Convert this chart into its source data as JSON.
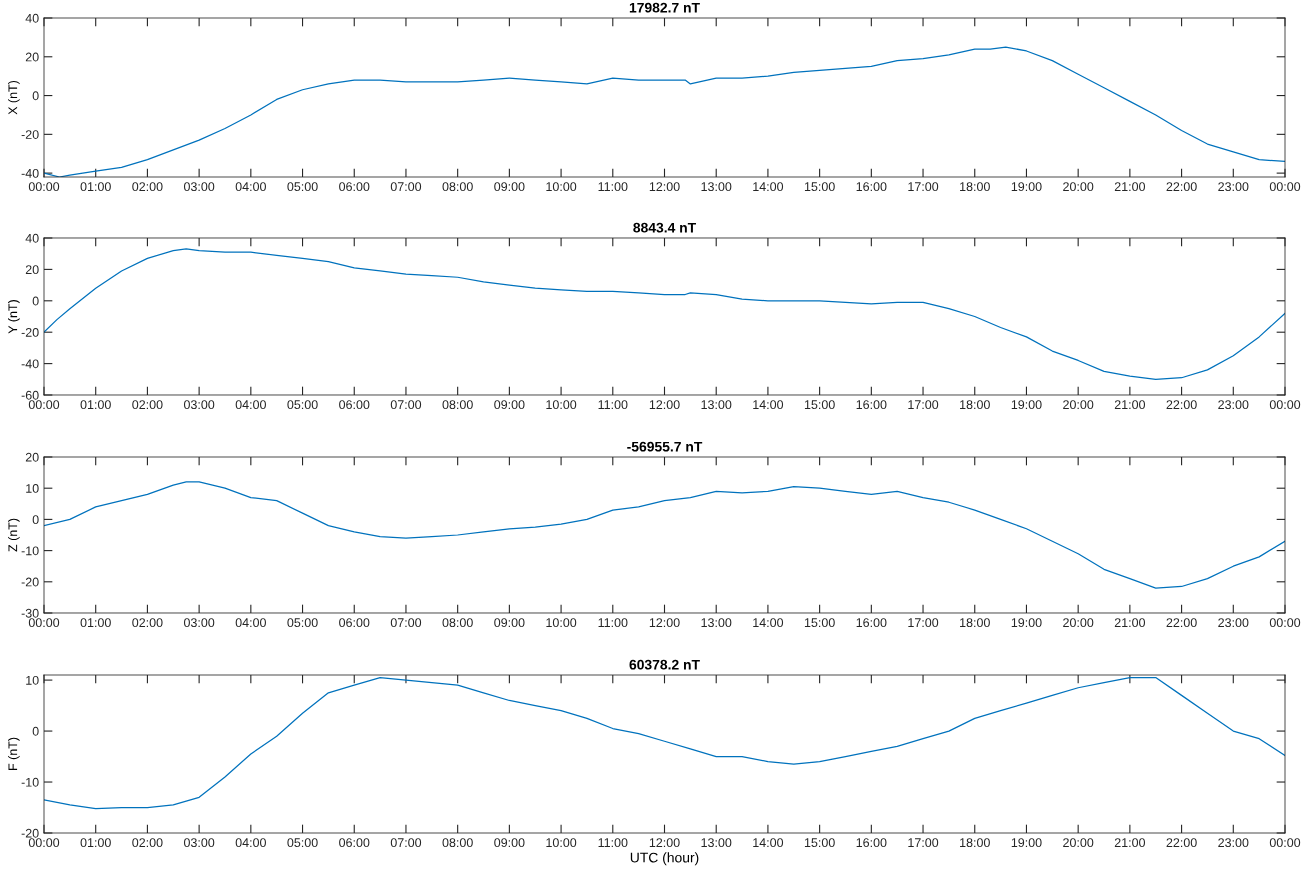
{
  "chart_data": [
    {
      "type": "line",
      "title": "17982.7 nT",
      "ylabel": "X (nT)",
      "xlim": [
        0,
        24
      ],
      "ylim": [
        -42,
        40
      ],
      "yticks": [
        -40,
        -20,
        0,
        20,
        40
      ],
      "grid": false,
      "legend": false,
      "marker": "none",
      "line_style": "solid",
      "xticks": [
        {
          "value": 0,
          "label": "00:00"
        },
        {
          "value": 1,
          "label": "01:00"
        },
        {
          "value": 2,
          "label": "02:00"
        },
        {
          "value": 3,
          "label": "03:00"
        },
        {
          "value": 4,
          "label": "04:00"
        },
        {
          "value": 5,
          "label": "05:00"
        },
        {
          "value": 6,
          "label": "06:00"
        },
        {
          "value": 7,
          "label": "07:00"
        },
        {
          "value": 8,
          "label": "08:00"
        },
        {
          "value": 9,
          "label": "09:00"
        },
        {
          "value": 10,
          "label": "10:00"
        },
        {
          "value": 11,
          "label": "11:00"
        },
        {
          "value": 12,
          "label": "12:00"
        },
        {
          "value": 13,
          "label": "13:00"
        },
        {
          "value": 14,
          "label": "14:00"
        },
        {
          "value": 15,
          "label": "15:00"
        },
        {
          "value": 16,
          "label": "16:00"
        },
        {
          "value": 17,
          "label": "17:00"
        },
        {
          "value": 18,
          "label": "18:00"
        },
        {
          "value": 19,
          "label": "19:00"
        },
        {
          "value": 20,
          "label": "20:00"
        },
        {
          "value": 21,
          "label": "21:00"
        },
        {
          "value": 22,
          "label": "22:00"
        },
        {
          "value": 23,
          "label": "23:00"
        },
        {
          "value": 24,
          "label": "00:00"
        }
      ],
      "series": [
        {
          "color": "#0072bd",
          "x": [
            0,
            0.3,
            0.5,
            1,
            1.5,
            2,
            2.5,
            3,
            3.5,
            4,
            4.5,
            5,
            5.5,
            6,
            6.5,
            7,
            7.5,
            8,
            8.5,
            9,
            9.5,
            10,
            10.5,
            11,
            11.5,
            12,
            12.4,
            12.5,
            13,
            13.5,
            14,
            14.5,
            15,
            15.5,
            16,
            16.5,
            17,
            17.5,
            18,
            18.3,
            18.6,
            19,
            19.5,
            20,
            20.5,
            21,
            21.5,
            22,
            22.5,
            23,
            23.5,
            24
          ],
          "values": [
            -40,
            -42,
            -41,
            -39,
            -37,
            -33,
            -28,
            -23,
            -17,
            -10,
            -2,
            3,
            6,
            8,
            8,
            7,
            7,
            7,
            8,
            9,
            8,
            7,
            6,
            9,
            8,
            8,
            8,
            6,
            9,
            9,
            10,
            12,
            13,
            14,
            15,
            18,
            19,
            21,
            24,
            24,
            25,
            23,
            18,
            11,
            4,
            -3,
            -10,
            -18,
            -25,
            -29,
            -33,
            -34
          ]
        }
      ]
    },
    {
      "type": "line",
      "title": "8843.4 nT",
      "ylabel": "Y (nT)",
      "xlim": [
        0,
        24
      ],
      "ylim": [
        -60,
        40
      ],
      "yticks": [
        -60,
        -40,
        -20,
        0,
        20,
        40
      ],
      "grid": false,
      "legend": false,
      "marker": "none",
      "line_style": "solid",
      "xticks": [
        {
          "value": 0,
          "label": "00:00"
        },
        {
          "value": 1,
          "label": "01:00"
        },
        {
          "value": 2,
          "label": "02:00"
        },
        {
          "value": 3,
          "label": "03:00"
        },
        {
          "value": 4,
          "label": "04:00"
        },
        {
          "value": 5,
          "label": "05:00"
        },
        {
          "value": 6,
          "label": "06:00"
        },
        {
          "value": 7,
          "label": "07:00"
        },
        {
          "value": 8,
          "label": "08:00"
        },
        {
          "value": 9,
          "label": "09:00"
        },
        {
          "value": 10,
          "label": "10:00"
        },
        {
          "value": 11,
          "label": "11:00"
        },
        {
          "value": 12,
          "label": "12:00"
        },
        {
          "value": 13,
          "label": "13:00"
        },
        {
          "value": 14,
          "label": "14:00"
        },
        {
          "value": 15,
          "label": "15:00"
        },
        {
          "value": 16,
          "label": "16:00"
        },
        {
          "value": 17,
          "label": "17:00"
        },
        {
          "value": 18,
          "label": "18:00"
        },
        {
          "value": 19,
          "label": "19:00"
        },
        {
          "value": 20,
          "label": "20:00"
        },
        {
          "value": 21,
          "label": "21:00"
        },
        {
          "value": 22,
          "label": "22:00"
        },
        {
          "value": 23,
          "label": "23:00"
        },
        {
          "value": 24,
          "label": "00:00"
        }
      ],
      "series": [
        {
          "color": "#0072bd",
          "x": [
            0,
            0.25,
            0.5,
            1,
            1.5,
            2,
            2.5,
            2.75,
            3,
            3.5,
            4,
            4.5,
            5,
            5.5,
            6,
            6.5,
            7,
            7.5,
            8,
            8.5,
            9,
            9.5,
            10,
            10.5,
            11,
            11.5,
            12,
            12.4,
            12.5,
            13,
            13.5,
            14,
            14.5,
            15,
            15.5,
            16,
            16.5,
            17,
            17.5,
            18,
            18.5,
            19,
            19.5,
            20,
            20.5,
            21,
            21.5,
            22,
            22.5,
            23,
            23.5,
            24
          ],
          "values": [
            -20,
            -12,
            -5,
            8,
            19,
            27,
            32,
            33,
            32,
            31,
            31,
            29,
            27,
            25,
            21,
            19,
            17,
            16,
            15,
            12,
            10,
            8,
            7,
            6,
            6,
            5,
            4,
            4,
            5,
            4,
            1,
            0,
            0,
            0,
            -1,
            -2,
            -1,
            -1,
            -5,
            -10,
            -17,
            -23,
            -32,
            -38,
            -45,
            -48,
            -50,
            -49,
            -44,
            -35,
            -23,
            -8
          ]
        }
      ]
    },
    {
      "type": "line",
      "title": "-56955.7 nT",
      "ylabel": "Z (nT)",
      "xlim": [
        0,
        24
      ],
      "ylim": [
        -30,
        20
      ],
      "yticks": [
        -30,
        -20,
        -10,
        0,
        10,
        20
      ],
      "grid": false,
      "legend": false,
      "marker": "none",
      "line_style": "solid",
      "xticks": [
        {
          "value": 0,
          "label": "00:00"
        },
        {
          "value": 1,
          "label": "01:00"
        },
        {
          "value": 2,
          "label": "02:00"
        },
        {
          "value": 3,
          "label": "03:00"
        },
        {
          "value": 4,
          "label": "04:00"
        },
        {
          "value": 5,
          "label": "05:00"
        },
        {
          "value": 6,
          "label": "06:00"
        },
        {
          "value": 7,
          "label": "07:00"
        },
        {
          "value": 8,
          "label": "08:00"
        },
        {
          "value": 9,
          "label": "09:00"
        },
        {
          "value": 10,
          "label": "10:00"
        },
        {
          "value": 11,
          "label": "11:00"
        },
        {
          "value": 12,
          "label": "12:00"
        },
        {
          "value": 13,
          "label": "13:00"
        },
        {
          "value": 14,
          "label": "14:00"
        },
        {
          "value": 15,
          "label": "15:00"
        },
        {
          "value": 16,
          "label": "16:00"
        },
        {
          "value": 17,
          "label": "17:00"
        },
        {
          "value": 18,
          "label": "18:00"
        },
        {
          "value": 19,
          "label": "19:00"
        },
        {
          "value": 20,
          "label": "20:00"
        },
        {
          "value": 21,
          "label": "21:00"
        },
        {
          "value": 22,
          "label": "22:00"
        },
        {
          "value": 23,
          "label": "23:00"
        },
        {
          "value": 24,
          "label": "00:00"
        }
      ],
      "series": [
        {
          "color": "#0072bd",
          "x": [
            0,
            0.5,
            1,
            1.5,
            2,
            2.5,
            2.75,
            3,
            3.5,
            4,
            4.5,
            5,
            5.5,
            6,
            6.5,
            7,
            7.5,
            8,
            8.5,
            9,
            9.5,
            10,
            10.5,
            11,
            11.5,
            12,
            12.5,
            13,
            13.5,
            14,
            14.5,
            15,
            15.5,
            16,
            16.5,
            17,
            17.5,
            18,
            18.5,
            19,
            19.5,
            20,
            20.5,
            21,
            21.5,
            22,
            22.5,
            23,
            23.5,
            24
          ],
          "values": [
            -2,
            0,
            4,
            6,
            8,
            11,
            12,
            12,
            10,
            7,
            6,
            2,
            -2,
            -4,
            -5.5,
            -6,
            -5.5,
            -5,
            -4,
            -3,
            -2.5,
            -1.5,
            0,
            3,
            4,
            6,
            7,
            9,
            8.5,
            9,
            10.5,
            10,
            9,
            8,
            9,
            7,
            5.5,
            3,
            0,
            -3,
            -7,
            -11,
            -16,
            -19,
            -22,
            -21.5,
            -19,
            -15,
            -12,
            -7
          ]
        }
      ]
    },
    {
      "type": "line",
      "title": "60378.2 nT",
      "xlabel": "UTC (hour)",
      "ylabel": "F (nT)",
      "xlim": [
        0,
        24
      ],
      "ylim": [
        -20,
        11
      ],
      "yticks": [
        -20,
        -10,
        0,
        10
      ],
      "grid": false,
      "legend": false,
      "marker": "none",
      "line_style": "solid",
      "xticks": [
        {
          "value": 0,
          "label": "00:00"
        },
        {
          "value": 1,
          "label": "01:00"
        },
        {
          "value": 2,
          "label": "02:00"
        },
        {
          "value": 3,
          "label": "03:00"
        },
        {
          "value": 4,
          "label": "04:00"
        },
        {
          "value": 5,
          "label": "05:00"
        },
        {
          "value": 6,
          "label": "06:00"
        },
        {
          "value": 7,
          "label": "07:00"
        },
        {
          "value": 8,
          "label": "08:00"
        },
        {
          "value": 9,
          "label": "09:00"
        },
        {
          "value": 10,
          "label": "10:00"
        },
        {
          "value": 11,
          "label": "11:00"
        },
        {
          "value": 12,
          "label": "12:00"
        },
        {
          "value": 13,
          "label": "13:00"
        },
        {
          "value": 14,
          "label": "14:00"
        },
        {
          "value": 15,
          "label": "15:00"
        },
        {
          "value": 16,
          "label": "16:00"
        },
        {
          "value": 17,
          "label": "17:00"
        },
        {
          "value": 18,
          "label": "18:00"
        },
        {
          "value": 19,
          "label": "19:00"
        },
        {
          "value": 20,
          "label": "20:00"
        },
        {
          "value": 21,
          "label": "21:00"
        },
        {
          "value": 22,
          "label": "22:00"
        },
        {
          "value": 23,
          "label": "23:00"
        },
        {
          "value": 24,
          "label": "00:00"
        }
      ],
      "series": [
        {
          "color": "#0072bd",
          "x": [
            0,
            0.5,
            1,
            1.5,
            2,
            2.5,
            3,
            3.5,
            4,
            4.5,
            5,
            5.5,
            6,
            6.5,
            7,
            7.5,
            8,
            8.5,
            9,
            9.5,
            10,
            10.5,
            11,
            11.5,
            12,
            12.5,
            13,
            13.5,
            14,
            14.5,
            15,
            15.5,
            16,
            16.5,
            17,
            17.5,
            18,
            18.5,
            19,
            19.5,
            20,
            20.5,
            21,
            21.5,
            22,
            22.5,
            23,
            23.5,
            24
          ],
          "values": [
            -13.5,
            -14.5,
            -15.2,
            -15,
            -15,
            -14.5,
            -13,
            -9,
            -4.5,
            -1,
            3.5,
            7.5,
            9,
            10.5,
            10,
            9.5,
            9,
            7.5,
            6,
            5,
            4,
            2.5,
            0.5,
            -0.5,
            -2,
            -3.5,
            -5,
            -5,
            -6,
            -6.5,
            -6,
            -5,
            -4,
            -3,
            -1.5,
            0,
            2.5,
            4,
            5.5,
            7,
            8.5,
            9.5,
            10.5,
            10.5,
            7,
            3.5,
            0,
            -1.5,
            -4.8
          ]
        }
      ]
    }
  ]
}
